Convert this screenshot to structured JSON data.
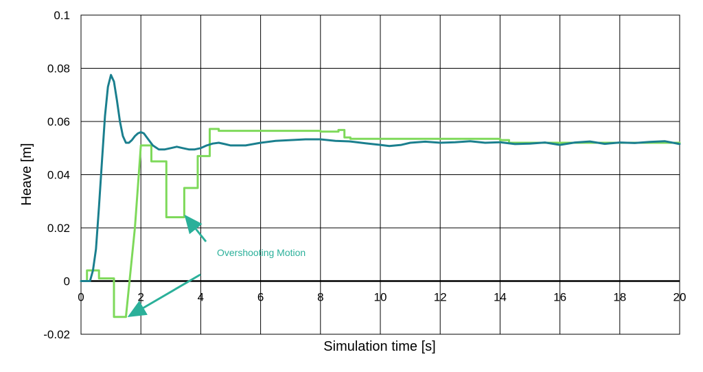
{
  "chart_data": {
    "type": "line",
    "title": "",
    "xlabel": "Simulation time [s]",
    "ylabel": "Heave [m]",
    "xlim": [
      0,
      20
    ],
    "ylim": [
      -0.02,
      0.1
    ],
    "x_ticks": [
      0,
      2,
      4,
      6,
      8,
      10,
      12,
      14,
      16,
      18,
      20
    ],
    "y_ticks": [
      -0.02,
      0,
      0.02,
      0.04,
      0.06,
      0.08,
      0.1
    ],
    "y_tick_labels": [
      "-0.02",
      "0",
      "0.02",
      "0.04",
      "0.06",
      "0.08",
      "0.1"
    ],
    "x_tick_labels": [
      "0",
      "2",
      "4",
      "6",
      "8",
      "10",
      "12",
      "14",
      "16",
      "18",
      "20"
    ],
    "grid": true,
    "legend": "none",
    "series": [
      {
        "color": "#1a7f8e",
        "x": [
          0,
          0.2,
          0.3,
          0.4,
          0.5,
          0.6,
          0.7,
          0.8,
          0.9,
          1.0,
          1.1,
          1.2,
          1.3,
          1.4,
          1.5,
          1.6,
          1.7,
          1.8,
          1.9,
          2.0,
          2.1,
          2.2,
          2.4,
          2.6,
          2.8,
          3.0,
          3.2,
          3.4,
          3.6,
          3.8,
          4.0,
          4.2,
          4.4,
          4.6,
          4.8,
          5.0,
          5.5,
          6.0,
          6.5,
          7.0,
          7.5,
          8.0,
          8.5,
          9.0,
          9.5,
          10.0,
          10.3,
          10.7,
          11.0,
          11.5,
          12.0,
          12.5,
          13.0,
          13.5,
          14.0,
          14.5,
          15.0,
          15.5,
          16.0,
          16.5,
          17.0,
          17.5,
          18.0,
          18.5,
          19.0,
          19.5,
          20.0
        ],
        "y": [
          0,
          0,
          0,
          0.004,
          0.012,
          0.028,
          0.045,
          0.062,
          0.073,
          0.0775,
          0.075,
          0.068,
          0.06,
          0.0545,
          0.052,
          0.052,
          0.053,
          0.0545,
          0.0555,
          0.056,
          0.0555,
          0.054,
          0.051,
          0.0495,
          0.0495,
          0.05,
          0.0505,
          0.05,
          0.0495,
          0.0495,
          0.05,
          0.051,
          0.0517,
          0.052,
          0.0515,
          0.051,
          0.051,
          0.052,
          0.0527,
          0.053,
          0.0533,
          0.0533,
          0.0527,
          0.0525,
          0.0518,
          0.0512,
          0.0508,
          0.0512,
          0.052,
          0.0524,
          0.052,
          0.0522,
          0.0526,
          0.052,
          0.0522,
          0.0515,
          0.0517,
          0.0521,
          0.0512,
          0.0521,
          0.0525,
          0.0516,
          0.0521,
          0.0519,
          0.0523,
          0.0526,
          0.0515
        ]
      },
      {
        "color": "#7ed95a",
        "x": [
          0,
          0.2,
          0.2,
          0.6,
          0.6,
          1.0,
          1.0,
          1.1,
          1.1,
          1.5,
          1.8,
          2.0,
          2.0,
          2.35,
          2.35,
          2.75,
          2.75,
          2.85,
          2.85,
          3.3,
          3.3,
          3.45,
          3.45,
          3.8,
          3.8,
          3.9,
          3.9,
          4.3,
          4.3,
          4.6,
          4.6,
          8.0,
          8.0,
          8.6,
          8.6,
          8.8,
          8.8,
          9.0,
          9.0,
          14.0,
          14.0,
          14.3,
          14.3,
          15.0,
          15.0,
          20.0
        ],
        "y": [
          0,
          0,
          0.004,
          0.004,
          0.001,
          0.001,
          0.001,
          0.001,
          -0.0135,
          -0.0135,
          0.02,
          0.051,
          0.051,
          0.051,
          0.045,
          0.045,
          0.045,
          0.045,
          0.024,
          0.024,
          0.024,
          0.024,
          0.035,
          0.035,
          0.035,
          0.035,
          0.047,
          0.047,
          0.0572,
          0.0572,
          0.0565,
          0.0565,
          0.0562,
          0.0562,
          0.0568,
          0.0568,
          0.054,
          0.054,
          0.0535,
          0.0535,
          0.053,
          0.053,
          0.052,
          0.052,
          0.052,
          0.052
        ]
      }
    ],
    "annotations": [
      {
        "text": "Overshooting Motion",
        "color": "#2bb09a"
      }
    ]
  }
}
